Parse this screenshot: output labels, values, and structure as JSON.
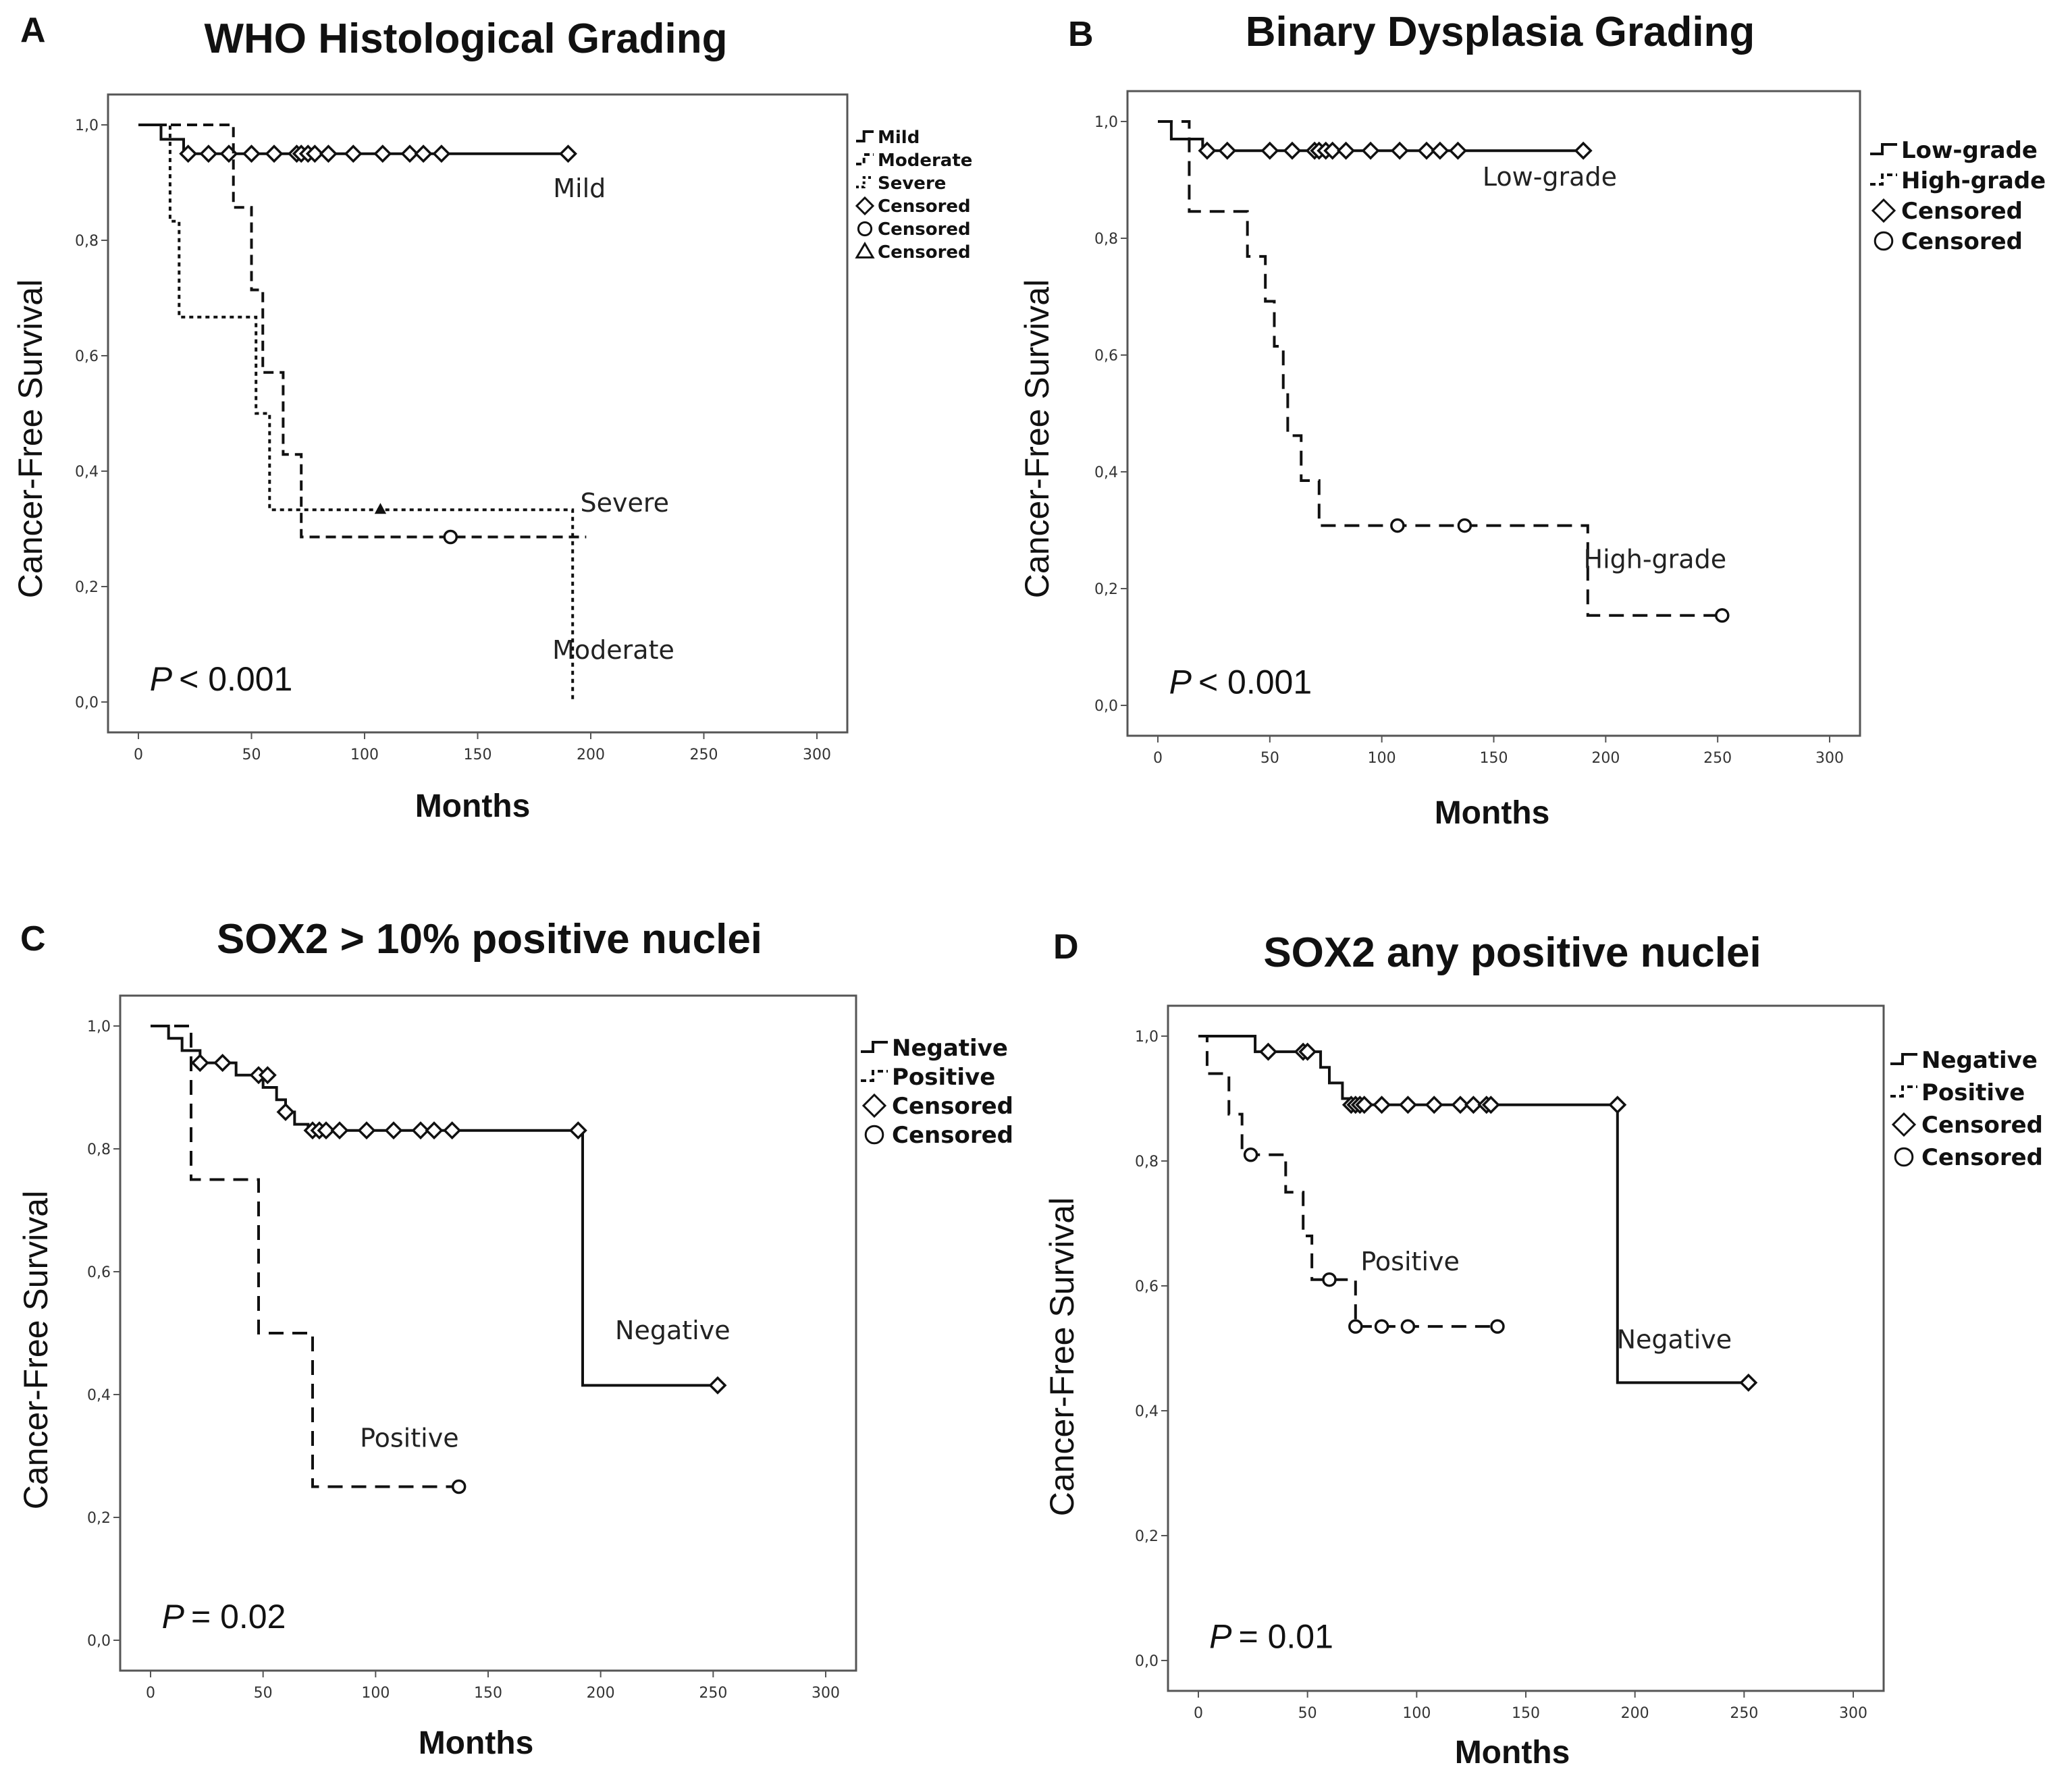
{
  "chart_data": [
    {
      "type": "line",
      "subtype": "kaplan-meier",
      "panel": "A",
      "title": "WHO Histological Grading",
      "xlabel": "Months",
      "ylabel": "Cancer-Free Survival",
      "xlim": [
        0,
        300
      ],
      "ylim": [
        0,
        1
      ],
      "xticks": [
        "0",
        "50",
        "100",
        "150",
        "200",
        "250",
        "300"
      ],
      "yticks": [
        "0,0",
        "0,2",
        "0,4",
        "0,6",
        "0,8",
        "1,0"
      ],
      "p_value": {
        "label": "P",
        "text": "< 0.001"
      },
      "legend_labels": [
        "Mild",
        "Moderate",
        "Severe",
        "Censored",
        "Censored",
        "Censored"
      ],
      "series": [
        {
          "name": "Mild",
          "dash": "solid",
          "marker": "diamond",
          "label": "Mild",
          "label_pos": [
            195,
            0.875
          ],
          "steps": [
            [
              0,
              1.0
            ],
            [
              10,
              0.975
            ],
            [
              20,
              0.95
            ],
            [
              190,
              0.95
            ]
          ],
          "censored": [
            [
              22,
              0.95
            ],
            [
              31,
              0.95
            ],
            [
              40,
              0.95
            ],
            [
              50,
              0.95
            ],
            [
              60,
              0.95
            ],
            [
              70,
              0.95
            ],
            [
              72,
              0.95
            ],
            [
              75,
              0.95
            ],
            [
              78,
              0.95
            ],
            [
              84,
              0.95
            ],
            [
              95,
              0.95
            ],
            [
              108,
              0.95
            ],
            [
              120,
              0.95
            ],
            [
              126,
              0.95
            ],
            [
              134,
              0.95
            ],
            [
              190,
              0.95
            ]
          ]
        },
        {
          "name": "Moderate",
          "dash": "medium",
          "marker": "circle",
          "label": "Moderate",
          "label_pos": [
            210,
            0.075
          ],
          "steps": [
            [
              0,
              1.0
            ],
            [
              42,
              1.0
            ],
            [
              42,
              0.857
            ],
            [
              50,
              0.857
            ],
            [
              50,
              0.714
            ],
            [
              55,
              0.714
            ],
            [
              55,
              0.571
            ],
            [
              64,
              0.571
            ],
            [
              64,
              0.429
            ],
            [
              72,
              0.429
            ],
            [
              72,
              0.286
            ],
            [
              198,
              0.286
            ]
          ],
          "censored": [
            [
              138,
              0.286
            ]
          ]
        },
        {
          "name": "Severe",
          "dash": "dotted",
          "marker": "triangle",
          "label": "Severe",
          "label_pos": [
            215,
            0.33
          ],
          "steps": [
            [
              0,
              1.0
            ],
            [
              14,
              1.0
            ],
            [
              14,
              0.833
            ],
            [
              18,
              0.833
            ],
            [
              18,
              0.667
            ],
            [
              38,
              0.667
            ],
            [
              52,
              0.667
            ],
            [
              52,
              0.5
            ],
            [
              58,
              0.5
            ],
            [
              58,
              0.333
            ],
            [
              192,
              0.333
            ],
            [
              192,
              0.0
            ]
          ],
          "censored": [
            [
              107,
              0.333
            ]
          ]
        }
      ]
    },
    {
      "type": "line",
      "subtype": "kaplan-meier",
      "panel": "B",
      "title": "Binary Dysplasia Grading",
      "xlabel": "Months",
      "ylabel": "Cancer-Free Survival",
      "xlim": [
        0,
        300
      ],
      "ylim": [
        0,
        1
      ],
      "xticks": [
        "0",
        "50",
        "100",
        "150",
        "200",
        "250",
        "300"
      ],
      "yticks": [
        "0,0",
        "0,2",
        "0,4",
        "0,6",
        "0,8",
        "1,0"
      ],
      "p_value": {
        "label": "P",
        "text": "< 0.001"
      },
      "legend_labels": [
        "Low-grade",
        "High-grade",
        "Censored",
        "Censored"
      ],
      "series": [
        {
          "name": "Low-grade",
          "dash": "solid",
          "marker": "diamond",
          "label": "Low-grade",
          "label_pos": [
            175,
            0.89
          ],
          "steps": [
            [
              0,
              1.0
            ],
            [
              6,
              0.97
            ],
            [
              20,
              0.95
            ],
            [
              190,
              0.95
            ]
          ],
          "censored": [
            [
              22,
              0.95
            ],
            [
              31,
              0.95
            ],
            [
              50,
              0.95
            ],
            [
              60,
              0.95
            ],
            [
              70,
              0.95
            ],
            [
              72,
              0.95
            ],
            [
              75,
              0.95
            ],
            [
              78,
              0.95
            ],
            [
              84,
              0.95
            ],
            [
              95,
              0.95
            ],
            [
              108,
              0.95
            ],
            [
              120,
              0.95
            ],
            [
              126,
              0.95
            ],
            [
              134,
              0.95
            ],
            [
              190,
              0.95
            ]
          ]
        },
        {
          "name": "High-grade",
          "dash": "dashed",
          "marker": "circle",
          "label": "High-grade",
          "label_pos": [
            222,
            0.235
          ],
          "steps": [
            [
              0,
              1.0
            ],
            [
              14,
              1.0
            ],
            [
              14,
              0.846
            ],
            [
              40,
              0.846
            ],
            [
              40,
              0.769
            ],
            [
              48,
              0.769
            ],
            [
              48,
              0.692
            ],
            [
              52,
              0.692
            ],
            [
              52,
              0.615
            ],
            [
              56,
              0.615
            ],
            [
              56,
              0.538
            ],
            [
              58,
              0.538
            ],
            [
              58,
              0.462
            ],
            [
              64,
              0.462
            ],
            [
              64,
              0.385
            ],
            [
              72,
              0.385
            ],
            [
              72,
              0.308
            ],
            [
              192,
              0.308
            ],
            [
              192,
              0.154
            ],
            [
              252,
              0.154
            ]
          ],
          "censored": [
            [
              107,
              0.308
            ],
            [
              137,
              0.308
            ],
            [
              252,
              0.154
            ]
          ]
        }
      ]
    },
    {
      "type": "line",
      "subtype": "kaplan-meier",
      "panel": "C",
      "title": "SOX2 > 10% positive nuclei",
      "xlabel": "Months",
      "ylabel": "Cancer-Free Survival",
      "xlim": [
        0,
        300
      ],
      "ylim": [
        0,
        1
      ],
      "xticks": [
        "0",
        "50",
        "100",
        "150",
        "200",
        "250",
        "300"
      ],
      "yticks": [
        "0,0",
        "0,2",
        "0,4",
        "0,6",
        "0,8",
        "1,0"
      ],
      "p_value": {
        "label": "P",
        "text": "= 0.02"
      },
      "legend_labels": [
        "Negative",
        "Positive",
        "Censored",
        "Censored"
      ],
      "series": [
        {
          "name": "Negative",
          "dash": "solid",
          "marker": "diamond",
          "label": "Negative",
          "label_pos": [
            232,
            0.49
          ],
          "steps": [
            [
              0,
              1.0
            ],
            [
              8,
              0.98
            ],
            [
              14,
              0.96
            ],
            [
              22,
              0.94
            ],
            [
              32,
              0.94
            ],
            [
              38,
              0.92
            ],
            [
              50,
              0.9
            ],
            [
              56,
              0.88
            ],
            [
              60,
              0.86
            ],
            [
              64,
              0.84
            ],
            [
              70,
              0.83
            ],
            [
              192,
              0.83
            ],
            [
              192,
              0.415
            ],
            [
              252,
              0.415
            ]
          ],
          "censored": [
            [
              22,
              0.94
            ],
            [
              32,
              0.94
            ],
            [
              48,
              0.92
            ],
            [
              52,
              0.92
            ],
            [
              60,
              0.86
            ],
            [
              72,
              0.83
            ],
            [
              75,
              0.83
            ],
            [
              78,
              0.83
            ],
            [
              84,
              0.83
            ],
            [
              96,
              0.83
            ],
            [
              108,
              0.83
            ],
            [
              120,
              0.83
            ],
            [
              126,
              0.83
            ],
            [
              134,
              0.83
            ],
            [
              190,
              0.83
            ],
            [
              252,
              0.415
            ]
          ]
        },
        {
          "name": "Positive",
          "dash": "dashed",
          "marker": "circle",
          "label": "Positive",
          "label_pos": [
            115,
            0.315
          ],
          "steps": [
            [
              0,
              1.0
            ],
            [
              18,
              1.0
            ],
            [
              18,
              0.75
            ],
            [
              48,
              0.75
            ],
            [
              48,
              0.5
            ],
            [
              72,
              0.5
            ],
            [
              72,
              0.25
            ],
            [
              137,
              0.25
            ]
          ],
          "censored": [
            [
              137,
              0.25
            ]
          ]
        }
      ]
    },
    {
      "type": "line",
      "subtype": "kaplan-meier",
      "panel": "D",
      "title": "SOX2 any positive nuclei",
      "xlabel": "Months",
      "ylabel": "Cancer-Free Survival",
      "xlim": [
        0,
        300
      ],
      "ylim": [
        0,
        1
      ],
      "xticks": [
        "0",
        "50",
        "100",
        "150",
        "200",
        "250",
        "300"
      ],
      "yticks": [
        "0,0",
        "0,2",
        "0,4",
        "0,6",
        "0,8",
        "1,0"
      ],
      "p_value": {
        "label": "P",
        "text": "= 0.01"
      },
      "legend_labels": [
        "Negative",
        "Positive",
        "Censored",
        "Censored"
      ],
      "series": [
        {
          "name": "Negative",
          "dash": "solid",
          "marker": "diamond",
          "label": "Negative",
          "label_pos": [
            218,
            0.5
          ],
          "steps": [
            [
              0,
              1.0
            ],
            [
              22,
              1.0
            ],
            [
              26,
              0.975
            ],
            [
              52,
              0.975
            ],
            [
              56,
              0.95
            ],
            [
              60,
              0.925
            ],
            [
              66,
              0.9
            ],
            [
              70,
              0.89
            ],
            [
              192,
              0.89
            ],
            [
              192,
              0.445
            ],
            [
              252,
              0.445
            ]
          ],
          "censored": [
            [
              32,
              0.975
            ],
            [
              48,
              0.975
            ],
            [
              50,
              0.975
            ],
            [
              70,
              0.89
            ],
            [
              72,
              0.89
            ],
            [
              74,
              0.89
            ],
            [
              76,
              0.89
            ],
            [
              84,
              0.89
            ],
            [
              96,
              0.89
            ],
            [
              108,
              0.89
            ],
            [
              120,
              0.89
            ],
            [
              126,
              0.89
            ],
            [
              132,
              0.89
            ],
            [
              134,
              0.89
            ],
            [
              192,
              0.89
            ],
            [
              252,
              0.445
            ]
          ]
        },
        {
          "name": "Positive",
          "dash": "dashed",
          "marker": "circle",
          "label": "Positive",
          "label_pos": [
            97,
            0.625
          ],
          "steps": [
            [
              0,
              1.0
            ],
            [
              4,
              0.94
            ],
            [
              14,
              0.875
            ],
            [
              20,
              0.81
            ],
            [
              40,
              0.81
            ],
            [
              40,
              0.75
            ],
            [
              48,
              0.68
            ],
            [
              52,
              0.61
            ],
            [
              72,
              0.61
            ],
            [
              72,
              0.535
            ],
            [
              137,
              0.535
            ]
          ],
          "censored": [
            [
              24,
              0.81
            ],
            [
              60,
              0.61
            ],
            [
              72,
              0.535
            ],
            [
              84,
              0.535
            ],
            [
              96,
              0.535
            ],
            [
              137,
              0.535
            ]
          ]
        }
      ]
    }
  ]
}
